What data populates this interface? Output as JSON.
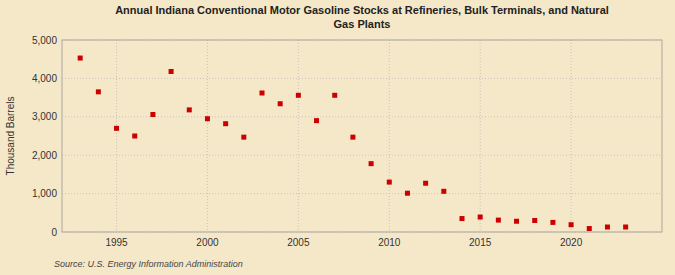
{
  "chart_data": {
    "type": "scatter",
    "title": "Annual Indiana Conventional Motor Gasoline Stocks at Refineries, Bulk Terminals, and Natural\nGas Plants",
    "y_label": "Thousand Barrels",
    "source": "Source: U.S. Energy Information Administration",
    "x": [
      1993,
      1994,
      1995,
      1996,
      1997,
      1998,
      1999,
      2000,
      2001,
      2002,
      2003,
      2004,
      2005,
      2006,
      2007,
      2008,
      2009,
      2010,
      2011,
      2012,
      2013,
      2014,
      2015,
      2016,
      2017,
      2018,
      2019,
      2020,
      2021,
      2022,
      2023
    ],
    "values": [
      4530,
      3650,
      2700,
      2500,
      3060,
      4180,
      3180,
      2950,
      2820,
      2470,
      3620,
      3340,
      3560,
      2900,
      3560,
      2470,
      1780,
      1300,
      1010,
      1270,
      1060,
      350,
      390,
      310,
      280,
      300,
      250,
      190,
      90,
      130,
      130
    ],
    "color": "#cc0000",
    "marker": "square",
    "xlim": [
      1992,
      2025
    ],
    "xticks": [
      1995,
      2000,
      2005,
      2010,
      2015,
      2020
    ],
    "ylim": [
      0,
      5000
    ],
    "yticks": [
      0,
      {
        "value": 1000,
        "label": "1,000"
      },
      {
        "value": 2000,
        "label": "2,000"
      },
      {
        "value": 3000,
        "label": "3,000"
      },
      {
        "value": 4000,
        "label": "4,000"
      },
      {
        "value": 5000,
        "label": "5,000"
      }
    ],
    "grid": true
  }
}
